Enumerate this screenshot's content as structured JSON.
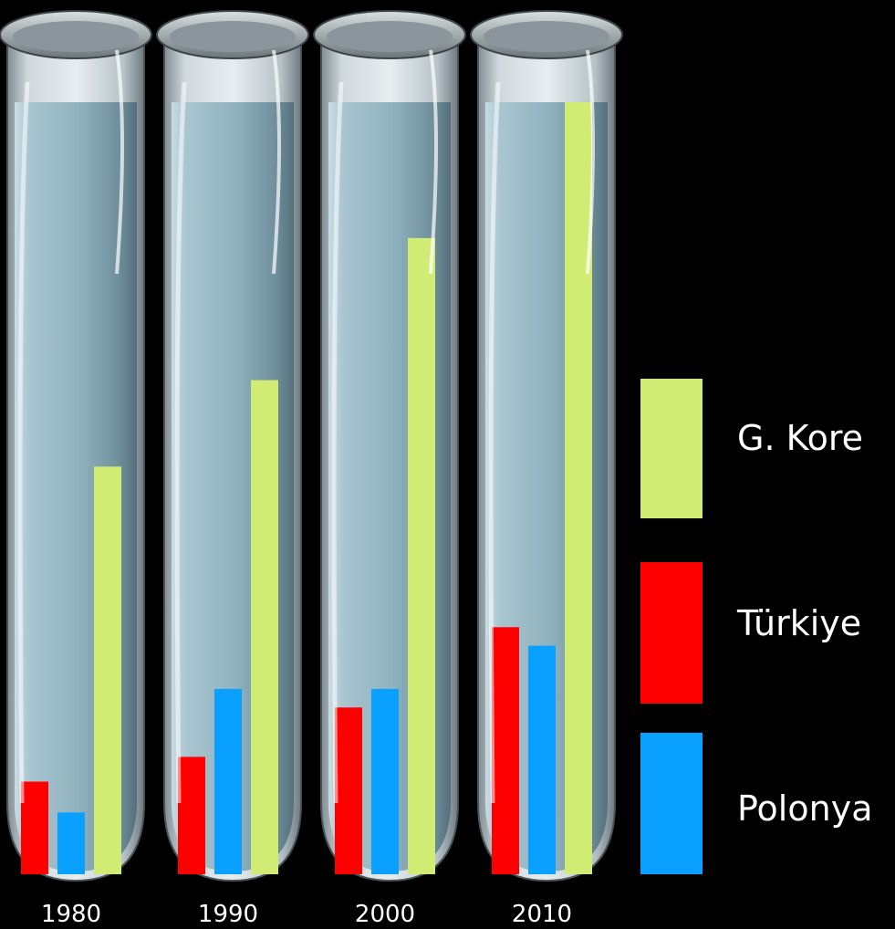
{
  "chart_data": {
    "type": "bar",
    "categories": [
      "1980",
      "1990",
      "2000",
      "2010"
    ],
    "series": [
      {
        "name": "Türkiye",
        "color": "#ff0000",
        "values": [
          15,
          19,
          27,
          40
        ]
      },
      {
        "name": "Polonya",
        "color": "#0aa0ff",
        "values": [
          10,
          30,
          30,
          37
        ]
      },
      {
        "name": "G. Kore",
        "color": "#d1ec72",
        "values": [
          66,
          80,
          103,
          125
        ]
      }
    ],
    "legend_order": [
      "G. Kore",
      "Türkiye",
      "Polonya"
    ],
    "legend_position": "right",
    "grid": false,
    "ylim": [
      0,
      125
    ]
  }
}
